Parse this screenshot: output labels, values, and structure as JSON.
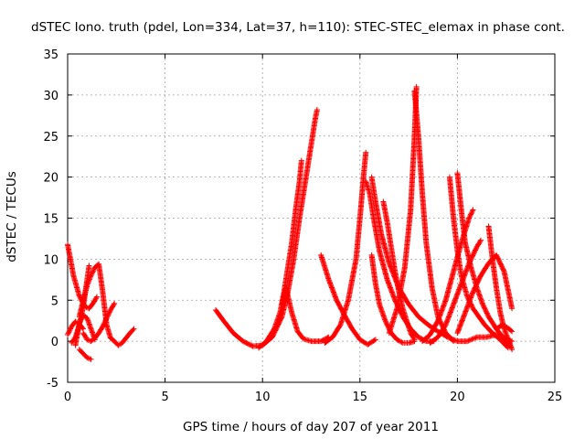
{
  "chart_data": {
    "type": "scatter",
    "title": "dSTEC Iono. truth (pdel, Lon=334, Lat=37, h=110): STEC-STEC_elemax in phase cont.",
    "xlabel": "GPS time / hours of day 207 of year 2011",
    "ylabel": "dSTEC  / TECUs",
    "xlim": [
      0,
      25
    ],
    "ylim": [
      -5,
      35
    ],
    "x_ticks": [
      0,
      5,
      10,
      15,
      20,
      25
    ],
    "y_ticks": [
      -5,
      0,
      5,
      10,
      15,
      20,
      25,
      30,
      35
    ],
    "grid": true,
    "marker": "+",
    "color": "#ff0000",
    "series": [
      {
        "x": [
          0.0,
          0.3,
          0.6,
          0.9,
          1.1,
          1.3,
          1.5
        ],
        "y": [
          11.8,
          8.0,
          5.5,
          4.2,
          4.0,
          4.6,
          5.4
        ]
      },
      {
        "x": [
          0.0,
          0.2,
          0.4,
          0.6,
          0.8
        ],
        "y": [
          0.8,
          1.8,
          2.4,
          2.1,
          1.5
        ]
      },
      {
        "x": [
          0.2,
          0.4,
          0.6,
          0.8,
          1.0,
          1.1
        ],
        "y": [
          -0.2,
          0.5,
          2.0,
          4.2,
          7.5,
          9.2
        ]
      },
      {
        "x": [
          0.4,
          0.6,
          0.8,
          1.0,
          1.2,
          1.4
        ],
        "y": [
          -0.5,
          2.2,
          3.2,
          2.8,
          1.5,
          0.2
        ]
      },
      {
        "x": [
          0.6,
          0.8,
          1.0,
          1.2
        ],
        "y": [
          -1.0,
          -1.5,
          -2.0,
          -2.2
        ]
      },
      {
        "x": [
          0.8,
          1.0,
          1.2,
          1.4,
          1.6,
          1.8,
          2.0,
          2.2,
          2.4
        ],
        "y": [
          1.0,
          0.2,
          0.0,
          0.4,
          1.0,
          1.8,
          2.8,
          3.8,
          4.6
        ]
      },
      {
        "x": [
          0.6,
          0.8,
          1.0,
          1.2,
          1.4,
          1.6,
          1.8,
          2.0,
          2.2,
          2.4,
          2.6,
          2.8,
          3.0,
          3.2,
          3.4
        ],
        "y": [
          3.0,
          5.0,
          6.8,
          8.0,
          9.0,
          9.4,
          6.0,
          2.0,
          0.4,
          0.0,
          -0.5,
          -0.2,
          0.4,
          1.0,
          1.5
        ]
      },
      {
        "x": [
          7.6,
          8.0,
          8.5,
          9.0,
          9.5,
          10.0,
          10.5,
          11.0,
          11.3,
          11.6,
          11.9,
          12.2,
          12.5,
          12.7,
          12.8
        ],
        "y": [
          3.8,
          2.5,
          1.0,
          0.0,
          -0.6,
          -0.5,
          0.5,
          3.0,
          6.0,
          10.0,
          15.0,
          19.5,
          24.0,
          27.0,
          28.2
        ]
      },
      {
        "x": [
          9.8,
          10.2,
          10.6,
          10.9,
          11.1,
          11.3,
          11.5,
          11.7,
          11.9,
          12.0
        ],
        "y": [
          -0.8,
          0.0,
          1.5,
          3.5,
          6.0,
          9.0,
          12.0,
          16.0,
          19.5,
          22.0
        ]
      },
      {
        "x": [
          11.0,
          11.2,
          11.5,
          11.8,
          12.1,
          12.5,
          13.0,
          13.4
        ],
        "y": [
          4.5,
          6.5,
          3.5,
          1.2,
          0.3,
          0.0,
          0.0,
          0.5
        ]
      },
      {
        "x": [
          13.0,
          13.4,
          13.8,
          14.2,
          14.6,
          15.0,
          15.4,
          15.8
        ],
        "y": [
          10.5,
          7.5,
          5.0,
          3.2,
          1.5,
          0.2,
          -0.4,
          0.2
        ]
      },
      {
        "x": [
          13.2,
          13.6,
          14.0,
          14.4,
          14.8,
          15.0,
          15.2,
          15.3
        ],
        "y": [
          -0.2,
          0.5,
          2.0,
          5.0,
          10.0,
          15.0,
          20.5,
          23.0
        ]
      },
      {
        "x": [
          15.3,
          15.5,
          15.7,
          16.0,
          16.4,
          16.8,
          17.2,
          17.6,
          18.0,
          18.4,
          18.8
        ],
        "y": [
          19.5,
          18.0,
          15.0,
          11.0,
          7.5,
          5.0,
          3.0,
          1.5,
          0.5,
          0.0,
          0.0
        ]
      },
      {
        "x": [
          15.6,
          15.8,
          16.1,
          16.5,
          17.0,
          17.5,
          18.0,
          18.5,
          19.0,
          19.5,
          20.0,
          20.5,
          21.0,
          21.5,
          22.0,
          22.5,
          22.8
        ],
        "y": [
          20.0,
          17.0,
          13.0,
          9.5,
          6.5,
          4.5,
          3.0,
          2.0,
          1.2,
          0.5,
          0.0,
          0.0,
          0.5,
          0.5,
          0.8,
          0.3,
          0.0
        ]
      },
      {
        "x": [
          15.6,
          15.8,
          16.0,
          16.3,
          16.6,
          16.9,
          17.2,
          17.5,
          17.8
        ],
        "y": [
          10.5,
          7.0,
          4.5,
          2.5,
          1.0,
          0.2,
          -0.2,
          -0.2,
          0.0
        ]
      },
      {
        "x": [
          16.2,
          16.4,
          16.6,
          16.8,
          17.0,
          17.2,
          17.4,
          17.6,
          17.8
        ],
        "y": [
          17.0,
          14.5,
          11.5,
          8.5,
          6.0,
          4.0,
          2.5,
          1.0,
          0.2
        ]
      },
      {
        "x": [
          16.5,
          16.9,
          17.3,
          17.6,
          17.8,
          17.9
        ],
        "y": [
          1.0,
          4.0,
          9.0,
          16.0,
          25.0,
          31.0
        ]
      },
      {
        "x": [
          17.8,
          18.0,
          18.2,
          18.4,
          18.7,
          19.0,
          19.4,
          19.8
        ],
        "y": [
          30.5,
          25.0,
          18.0,
          12.0,
          6.5,
          3.0,
          1.0,
          0.0
        ]
      },
      {
        "x": [
          18.2,
          18.6,
          19.0,
          19.4,
          19.8,
          20.2,
          20.6,
          20.8
        ],
        "y": [
          0.0,
          0.8,
          2.5,
          5.0,
          8.5,
          12.0,
          15.0,
          16.0
        ]
      },
      {
        "x": [
          18.6,
          19.0,
          19.4,
          19.8,
          20.2,
          20.6,
          21.0,
          21.2
        ],
        "y": [
          -0.2,
          0.5,
          2.0,
          4.5,
          7.0,
          9.5,
          11.5,
          12.3
        ]
      },
      {
        "x": [
          19.6,
          19.8,
          20.0,
          20.2,
          20.5,
          20.8,
          21.1,
          21.4,
          21.8,
          22.2,
          22.6
        ],
        "y": [
          20.0,
          15.0,
          11.0,
          8.0,
          5.5,
          4.0,
          3.0,
          2.0,
          1.0,
          0.2,
          -0.8
        ]
      },
      {
        "x": [
          20.0,
          20.2,
          20.4,
          20.7,
          21.0,
          21.3,
          21.6,
          22.0,
          22.4,
          22.7
        ],
        "y": [
          20.5,
          16.0,
          12.0,
          9.0,
          6.5,
          4.5,
          3.0,
          1.5,
          0.3,
          -0.5
        ]
      },
      {
        "x": [
          20.0,
          20.4,
          20.8,
          21.2,
          21.6,
          22.0,
          22.4,
          22.8
        ],
        "y": [
          1.0,
          3.5,
          6.0,
          8.0,
          9.5,
          10.5,
          8.5,
          4.0
        ]
      },
      {
        "x": [
          21.6,
          21.8,
          22.0,
          22.2,
          22.4,
          22.6,
          22.8
        ],
        "y": [
          14.0,
          10.0,
          6.5,
          3.5,
          1.5,
          0.3,
          -1.0
        ]
      },
      {
        "x": [
          22.0,
          22.3,
          22.6,
          22.8
        ],
        "y": [
          1.5,
          2.0,
          1.6,
          1.2
        ]
      }
    ]
  }
}
